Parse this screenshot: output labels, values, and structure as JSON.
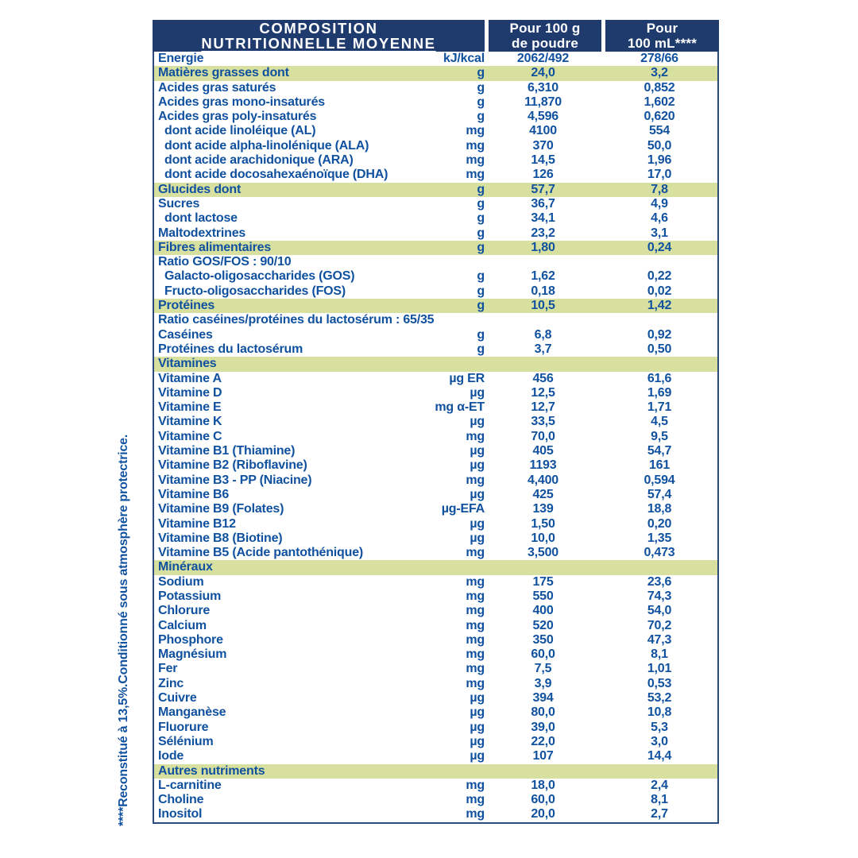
{
  "theme": {
    "header_bg": "#1F3B6E",
    "highlight_bg": "#D7E09F",
    "text_blue": "#10519F",
    "border_blue": "#2A4A80",
    "header_text": "#FFFFFF"
  },
  "header": {
    "col1_line1": "COMPOSITION",
    "col1_line2": "NUTRITIONNELLE MOYENNE",
    "col2_line1": "Pour 100 g",
    "col2_line2": "de poudre",
    "col3_line1": "Pour",
    "col3_line2": "100 mL****"
  },
  "footnote": {
    "text": "****Reconstitué à 13,5%.Conditionné sous atmosphère protectrice."
  },
  "table": {
    "rows": [
      {
        "label": "Energie",
        "unit": "kJ/kcal",
        "v100g": "2062/492",
        "v100ml": "278/66",
        "type": "plain",
        "indent": 0
      },
      {
        "label": "Matières grasses dont",
        "unit": "g",
        "v100g": "24,0",
        "v100ml": "3,2",
        "type": "highlight",
        "indent": 0
      },
      {
        "label": "Acides gras saturés",
        "unit": "g",
        "v100g": "6,310",
        "v100ml": "0,852",
        "type": "plain",
        "indent": 0
      },
      {
        "label": "Acides gras mono-insaturés",
        "unit": "g",
        "v100g": "11,870",
        "v100ml": "1,602",
        "type": "plain",
        "indent": 0
      },
      {
        "label": "Acides gras poly-insaturés",
        "unit": "g",
        "v100g": "4,596",
        "v100ml": "0,620",
        "type": "plain",
        "indent": 0
      },
      {
        "label": "dont acide linoléique (AL)",
        "unit": "mg",
        "v100g": "4100",
        "v100ml": "554",
        "type": "plain",
        "indent": 1
      },
      {
        "label": "dont acide alpha-linolénique (ALA)",
        "unit": "mg",
        "v100g": "370",
        "v100ml": "50,0",
        "type": "plain",
        "indent": 1
      },
      {
        "label": "dont acide arachidonique (ARA)",
        "unit": "mg",
        "v100g": "14,5",
        "v100ml": "1,96",
        "type": "plain",
        "indent": 1
      },
      {
        "label": "dont acide docosahexaénoïque (DHA)",
        "unit": "mg",
        "v100g": "126",
        "v100ml": "17,0",
        "type": "plain",
        "indent": 1
      },
      {
        "label": "Glucides dont",
        "unit": "g",
        "v100g": "57,7",
        "v100ml": "7,8",
        "type": "highlight",
        "indent": 0
      },
      {
        "label": "Sucres",
        "unit": "g",
        "v100g": "36,7",
        "v100ml": "4,9",
        "type": "plain",
        "indent": 0
      },
      {
        "label": "dont lactose",
        "unit": "g",
        "v100g": "34,1",
        "v100ml": "4,6",
        "type": "plain",
        "indent": 1
      },
      {
        "label": "Maltodextrines",
        "unit": "g",
        "v100g": "23,2",
        "v100ml": "3,1",
        "type": "plain",
        "indent": 0
      },
      {
        "label": "Fibres alimentaires",
        "unit": "g",
        "v100g": "1,80",
        "v100ml": "0,24",
        "type": "highlight",
        "indent": 0
      },
      {
        "label": "Ratio GOS/FOS : 90/10",
        "unit": "",
        "v100g": "",
        "v100ml": "",
        "type": "plain",
        "indent": 0
      },
      {
        "label": "Galacto-oligosaccharides (GOS)",
        "unit": "g",
        "v100g": "1,62",
        "v100ml": "0,22",
        "type": "plain",
        "indent": 1
      },
      {
        "label": "Fructo-oligosaccharides (FOS)",
        "unit": "g",
        "v100g": "0,18",
        "v100ml": "0,02",
        "type": "plain",
        "indent": 1
      },
      {
        "label": "Protéines",
        "unit": "g",
        "v100g": "10,5",
        "v100ml": "1,42",
        "type": "highlight",
        "indent": 0
      },
      {
        "label": "Ratio caséines/protéines du lactosérum : 65/35",
        "unit": "",
        "v100g": "",
        "v100ml": "",
        "type": "plain",
        "indent": 0
      },
      {
        "label": "Caséines",
        "unit": "g",
        "v100g": "6,8",
        "v100ml": "0,92",
        "type": "plain",
        "indent": 0
      },
      {
        "label": "Protéines du lactosérum",
        "unit": "g",
        "v100g": "3,7",
        "v100ml": "0,50",
        "type": "plain",
        "indent": 0
      },
      {
        "label": "Vitamines",
        "unit": "",
        "v100g": "",
        "v100ml": "",
        "type": "section",
        "indent": 0
      },
      {
        "label": "Vitamine A",
        "unit": "µg ER",
        "v100g": "456",
        "v100ml": "61,6",
        "type": "plain",
        "indent": 0
      },
      {
        "label": "Vitamine D",
        "unit": "µg",
        "v100g": "12,5",
        "v100ml": "1,69",
        "type": "plain",
        "indent": 0
      },
      {
        "label": "Vitamine E",
        "unit": "mg α-ET",
        "v100g": "12,7",
        "v100ml": "1,71",
        "type": "plain",
        "indent": 0
      },
      {
        "label": "Vitamine K",
        "unit": "µg",
        "v100g": "33,5",
        "v100ml": "4,5",
        "type": "plain",
        "indent": 0
      },
      {
        "label": "Vitamine C",
        "unit": "mg",
        "v100g": "70,0",
        "v100ml": "9,5",
        "type": "plain",
        "indent": 0
      },
      {
        "label": "Vitamine B1 (Thiamine)",
        "unit": "µg",
        "v100g": "405",
        "v100ml": "54,7",
        "type": "plain",
        "indent": 0
      },
      {
        "label": "Vitamine B2 (Riboflavine)",
        "unit": "µg",
        "v100g": "1193",
        "v100ml": "161",
        "type": "plain",
        "indent": 0
      },
      {
        "label": "Vitamine B3 - PP (Niacine)",
        "unit": "mg",
        "v100g": "4,400",
        "v100ml": "0,594",
        "type": "plain",
        "indent": 0
      },
      {
        "label": "Vitamine B6",
        "unit": "µg",
        "v100g": "425",
        "v100ml": "57,4",
        "type": "plain",
        "indent": 0
      },
      {
        "label": "Vitamine B9 (Folates)",
        "unit": "µg-EFA",
        "v100g": "139",
        "v100ml": "18,8",
        "type": "plain",
        "indent": 0
      },
      {
        "label": "Vitamine B12",
        "unit": "µg",
        "v100g": "1,50",
        "v100ml": "0,20",
        "type": "plain",
        "indent": 0
      },
      {
        "label": "Vitamine B8 (Biotine)",
        "unit": "µg",
        "v100g": "10,0",
        "v100ml": "1,35",
        "type": "plain",
        "indent": 0
      },
      {
        "label": "Vitamine B5 (Acide pantothénique)",
        "unit": "mg",
        "v100g": "3,500",
        "v100ml": "0,473",
        "type": "plain",
        "indent": 0
      },
      {
        "label": "Minéraux",
        "unit": "",
        "v100g": "",
        "v100ml": "",
        "type": "section",
        "indent": 0
      },
      {
        "label": "Sodium",
        "unit": "mg",
        "v100g": "175",
        "v100ml": "23,6",
        "type": "plain",
        "indent": 0
      },
      {
        "label": "Potassium",
        "unit": "mg",
        "v100g": "550",
        "v100ml": "74,3",
        "type": "plain",
        "indent": 0
      },
      {
        "label": "Chlorure",
        "unit": "mg",
        "v100g": "400",
        "v100ml": "54,0",
        "type": "plain",
        "indent": 0
      },
      {
        "label": "Calcium",
        "unit": "mg",
        "v100g": "520",
        "v100ml": "70,2",
        "type": "plain",
        "indent": 0
      },
      {
        "label": "Phosphore",
        "unit": "mg",
        "v100g": "350",
        "v100ml": "47,3",
        "type": "plain",
        "indent": 0
      },
      {
        "label": "Magnésium",
        "unit": "mg",
        "v100g": "60,0",
        "v100ml": "8,1",
        "type": "plain",
        "indent": 0
      },
      {
        "label": "Fer",
        "unit": "mg",
        "v100g": "7,5",
        "v100ml": "1,01",
        "type": "plain",
        "indent": 0
      },
      {
        "label": "Zinc",
        "unit": "mg",
        "v100g": "3,9",
        "v100ml": "0,53",
        "type": "plain",
        "indent": 0
      },
      {
        "label": "Cuivre",
        "unit": "µg",
        "v100g": "394",
        "v100ml": "53,2",
        "type": "plain",
        "indent": 0
      },
      {
        "label": "Manganèse",
        "unit": "µg",
        "v100g": "80,0",
        "v100ml": "10,8",
        "type": "plain",
        "indent": 0
      },
      {
        "label": "Fluorure",
        "unit": "µg",
        "v100g": "39,0",
        "v100ml": "5,3",
        "type": "plain",
        "indent": 0
      },
      {
        "label": "Sélénium",
        "unit": "µg",
        "v100g": "22,0",
        "v100ml": "3,0",
        "type": "plain",
        "indent": 0
      },
      {
        "label": "Iode",
        "unit": "µg",
        "v100g": "107",
        "v100ml": "14,4",
        "type": "plain",
        "indent": 0
      },
      {
        "label": "Autres nutriments",
        "unit": "",
        "v100g": "",
        "v100ml": "",
        "type": "section",
        "indent": 0
      },
      {
        "label": "L-carnitine",
        "unit": "mg",
        "v100g": "18,0",
        "v100ml": "2,4",
        "type": "plain",
        "indent": 0
      },
      {
        "label": "Choline",
        "unit": "mg",
        "v100g": "60,0",
        "v100ml": "8,1",
        "type": "plain",
        "indent": 0
      },
      {
        "label": "Inositol",
        "unit": "mg",
        "v100g": "20,0",
        "v100ml": "2,7",
        "type": "plain",
        "indent": 0
      }
    ]
  }
}
